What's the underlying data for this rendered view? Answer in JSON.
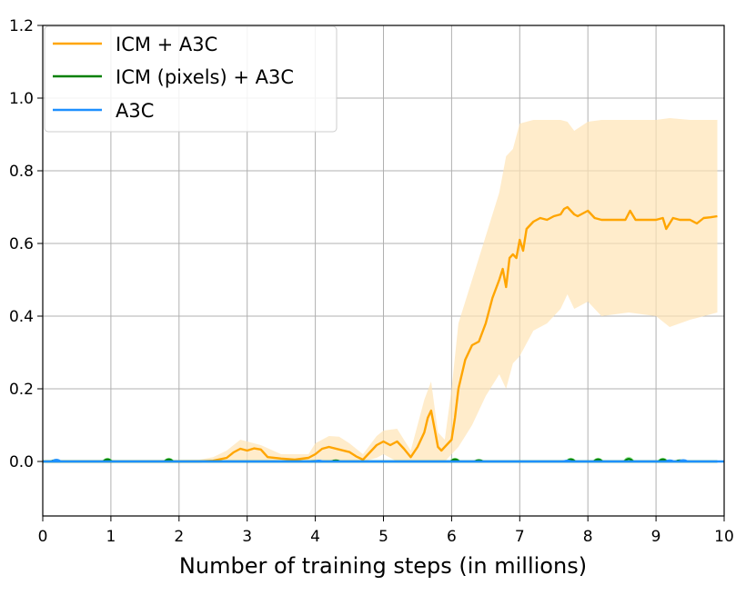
{
  "chart_data": {
    "type": "line",
    "title": "",
    "xlabel": "Number of training steps (in millions)",
    "ylabel": "",
    "xlim": [
      0,
      10
    ],
    "ylim": [
      -0.15,
      1.2
    ],
    "xticks": [
      0,
      1,
      2,
      3,
      4,
      5,
      6,
      7,
      8,
      9,
      10
    ],
    "xtick_labels": [
      "0",
      "1",
      "2",
      "3",
      "4",
      "5",
      "6",
      "7",
      "8",
      "9",
      "10"
    ],
    "yticks": [
      0.0,
      0.2,
      0.4,
      0.6,
      0.8,
      1.0,
      1.2
    ],
    "ytick_labels": [
      "0.0",
      "0.2",
      "0.4",
      "0.6",
      "0.8",
      "1.0",
      "1.2"
    ],
    "grid": true,
    "legend": {
      "placement": "top-left"
    },
    "series": [
      {
        "name": "ICM + A3C",
        "color": "#FFA500",
        "band_color": "#FFE4B5",
        "points": [
          [
            0.0,
            0.0
          ],
          [
            2.3,
            0.0
          ],
          [
            2.5,
            0.002
          ],
          [
            2.7,
            0.01
          ],
          [
            2.8,
            0.025
          ],
          [
            2.9,
            0.035
          ],
          [
            3.0,
            0.03
          ],
          [
            3.1,
            0.036
          ],
          [
            3.2,
            0.033
          ],
          [
            3.3,
            0.012
          ],
          [
            3.5,
            0.008
          ],
          [
            3.7,
            0.005
          ],
          [
            3.9,
            0.01
          ],
          [
            4.0,
            0.02
          ],
          [
            4.1,
            0.035
          ],
          [
            4.2,
            0.04
          ],
          [
            4.35,
            0.033
          ],
          [
            4.5,
            0.026
          ],
          [
            4.6,
            0.014
          ],
          [
            4.7,
            0.005
          ],
          [
            4.8,
            0.025
          ],
          [
            4.9,
            0.045
          ],
          [
            5.0,
            0.055
          ],
          [
            5.1,
            0.045
          ],
          [
            5.2,
            0.055
          ],
          [
            5.3,
            0.035
          ],
          [
            5.4,
            0.012
          ],
          [
            5.5,
            0.04
          ],
          [
            5.6,
            0.08
          ],
          [
            5.65,
            0.12
          ],
          [
            5.7,
            0.14
          ],
          [
            5.75,
            0.09
          ],
          [
            5.8,
            0.04
          ],
          [
            5.85,
            0.03
          ],
          [
            5.9,
            0.04
          ],
          [
            6.0,
            0.06
          ],
          [
            6.05,
            0.12
          ],
          [
            6.1,
            0.2
          ],
          [
            6.2,
            0.28
          ],
          [
            6.3,
            0.32
          ],
          [
            6.4,
            0.33
          ],
          [
            6.5,
            0.38
          ],
          [
            6.6,
            0.45
          ],
          [
            6.7,
            0.5
          ],
          [
            6.75,
            0.53
          ],
          [
            6.8,
            0.48
          ],
          [
            6.85,
            0.56
          ],
          [
            6.9,
            0.57
          ],
          [
            6.95,
            0.56
          ],
          [
            7.0,
            0.61
          ],
          [
            7.05,
            0.58
          ],
          [
            7.1,
            0.64
          ],
          [
            7.2,
            0.66
          ],
          [
            7.3,
            0.67
          ],
          [
            7.4,
            0.665
          ],
          [
            7.5,
            0.675
          ],
          [
            7.6,
            0.68
          ],
          [
            7.65,
            0.695
          ],
          [
            7.7,
            0.7
          ],
          [
            7.8,
            0.68
          ],
          [
            7.85,
            0.675
          ],
          [
            7.9,
            0.68
          ],
          [
            8.0,
            0.69
          ],
          [
            8.1,
            0.67
          ],
          [
            8.2,
            0.665
          ],
          [
            8.4,
            0.665
          ],
          [
            8.55,
            0.665
          ],
          [
            8.62,
            0.69
          ],
          [
            8.7,
            0.665
          ],
          [
            9.0,
            0.665
          ],
          [
            9.1,
            0.67
          ],
          [
            9.15,
            0.64
          ],
          [
            9.25,
            0.67
          ],
          [
            9.35,
            0.665
          ],
          [
            9.5,
            0.665
          ],
          [
            9.6,
            0.655
          ],
          [
            9.7,
            0.67
          ],
          [
            9.8,
            0.672
          ],
          [
            9.9,
            0.675
          ]
        ],
        "band": [
          [
            0.0,
            0.0,
            0.0
          ],
          [
            2.3,
            0.0,
            0.005
          ],
          [
            2.5,
            0.0,
            0.012
          ],
          [
            2.7,
            0.0,
            0.03
          ],
          [
            2.9,
            0.0,
            0.06
          ],
          [
            3.0,
            0.0,
            0.055
          ],
          [
            3.2,
            0.0,
            0.045
          ],
          [
            3.5,
            0.0,
            0.02
          ],
          [
            3.9,
            0.0,
            0.02
          ],
          [
            4.0,
            0.0,
            0.05
          ],
          [
            4.2,
            0.0,
            0.07
          ],
          [
            4.35,
            0.0,
            0.068
          ],
          [
            4.5,
            0.0,
            0.05
          ],
          [
            4.7,
            0.0,
            0.02
          ],
          [
            4.9,
            0.01,
            0.07
          ],
          [
            5.0,
            0.02,
            0.085
          ],
          [
            5.2,
            0.0,
            0.09
          ],
          [
            5.4,
            0.0,
            0.03
          ],
          [
            5.6,
            0.0,
            0.17
          ],
          [
            5.7,
            0.0,
            0.22
          ],
          [
            5.8,
            0.0,
            0.08
          ],
          [
            5.9,
            0.0,
            0.06
          ],
          [
            6.0,
            0.02,
            0.2
          ],
          [
            6.1,
            0.04,
            0.38
          ],
          [
            6.3,
            0.1,
            0.5
          ],
          [
            6.5,
            0.18,
            0.62
          ],
          [
            6.7,
            0.24,
            0.74
          ],
          [
            6.8,
            0.2,
            0.84
          ],
          [
            6.9,
            0.27,
            0.86
          ],
          [
            7.0,
            0.29,
            0.93
          ],
          [
            7.2,
            0.36,
            0.94
          ],
          [
            7.4,
            0.38,
            0.94
          ],
          [
            7.6,
            0.42,
            0.94
          ],
          [
            7.7,
            0.46,
            0.935
          ],
          [
            7.8,
            0.42,
            0.91
          ],
          [
            8.0,
            0.44,
            0.935
          ],
          [
            8.2,
            0.4,
            0.94
          ],
          [
            8.6,
            0.41,
            0.94
          ],
          [
            9.0,
            0.4,
            0.94
          ],
          [
            9.2,
            0.37,
            0.945
          ],
          [
            9.5,
            0.39,
            0.94
          ],
          [
            9.9,
            0.41,
            0.94
          ]
        ]
      },
      {
        "name": "ICM (pixels) + A3C",
        "color": "#008000",
        "band_color": "#90EE90",
        "points": [
          [
            0.0,
            0.0
          ],
          [
            9.9,
            0.0
          ]
        ],
        "bumps": [
          [
            0.18,
            0.004
          ],
          [
            0.95,
            0.008
          ],
          [
            1.85,
            0.008
          ],
          [
            4.0,
            0.002
          ],
          [
            4.3,
            0.004
          ],
          [
            6.05,
            0.008
          ],
          [
            6.4,
            0.005
          ],
          [
            7.75,
            0.008
          ],
          [
            8.15,
            0.008
          ],
          [
            8.6,
            0.01
          ],
          [
            9.1,
            0.008
          ],
          [
            9.35,
            0.004
          ]
        ]
      },
      {
        "name": "A3C",
        "color": "#1E90FF",
        "band_color": "#ADD8E6",
        "points": [
          [
            0.0,
            0.0
          ],
          [
            10.0,
            0.0
          ]
        ],
        "bumps": [
          [
            0.2,
            0.006
          ],
          [
            4.05,
            0.003
          ],
          [
            7.7,
            0.003
          ],
          [
            9.2,
            0.004
          ],
          [
            9.4,
            0.005
          ]
        ]
      }
    ]
  }
}
